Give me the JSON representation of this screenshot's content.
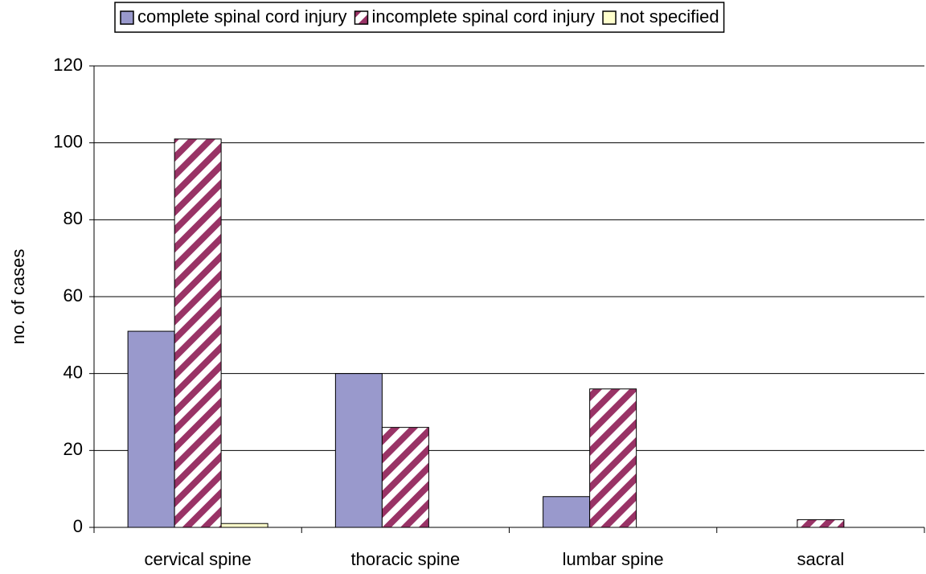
{
  "chart_data": {
    "type": "bar",
    "y_label": "no. of cases",
    "categories": [
      "cervical spine",
      "thoracic spine",
      "lumbar spine",
      "sacral"
    ],
    "series": [
      {
        "name": "complete spinal cord injury",
        "color": "#9999cc",
        "values": [
          51,
          40,
          8,
          0
        ]
      },
      {
        "name": "incomplete spinal cord injury",
        "color": "#993366",
        "pattern": "diagonal-stripes",
        "values": [
          101,
          26,
          36,
          2
        ]
      },
      {
        "name": "not specified",
        "color": "#ffffcc",
        "values": [
          1,
          0,
          0,
          0
        ]
      }
    ],
    "ylim": [
      0,
      120
    ],
    "yticks": [
      0,
      20,
      40,
      60,
      80,
      100,
      120
    ],
    "grid": true,
    "legend": "top"
  }
}
